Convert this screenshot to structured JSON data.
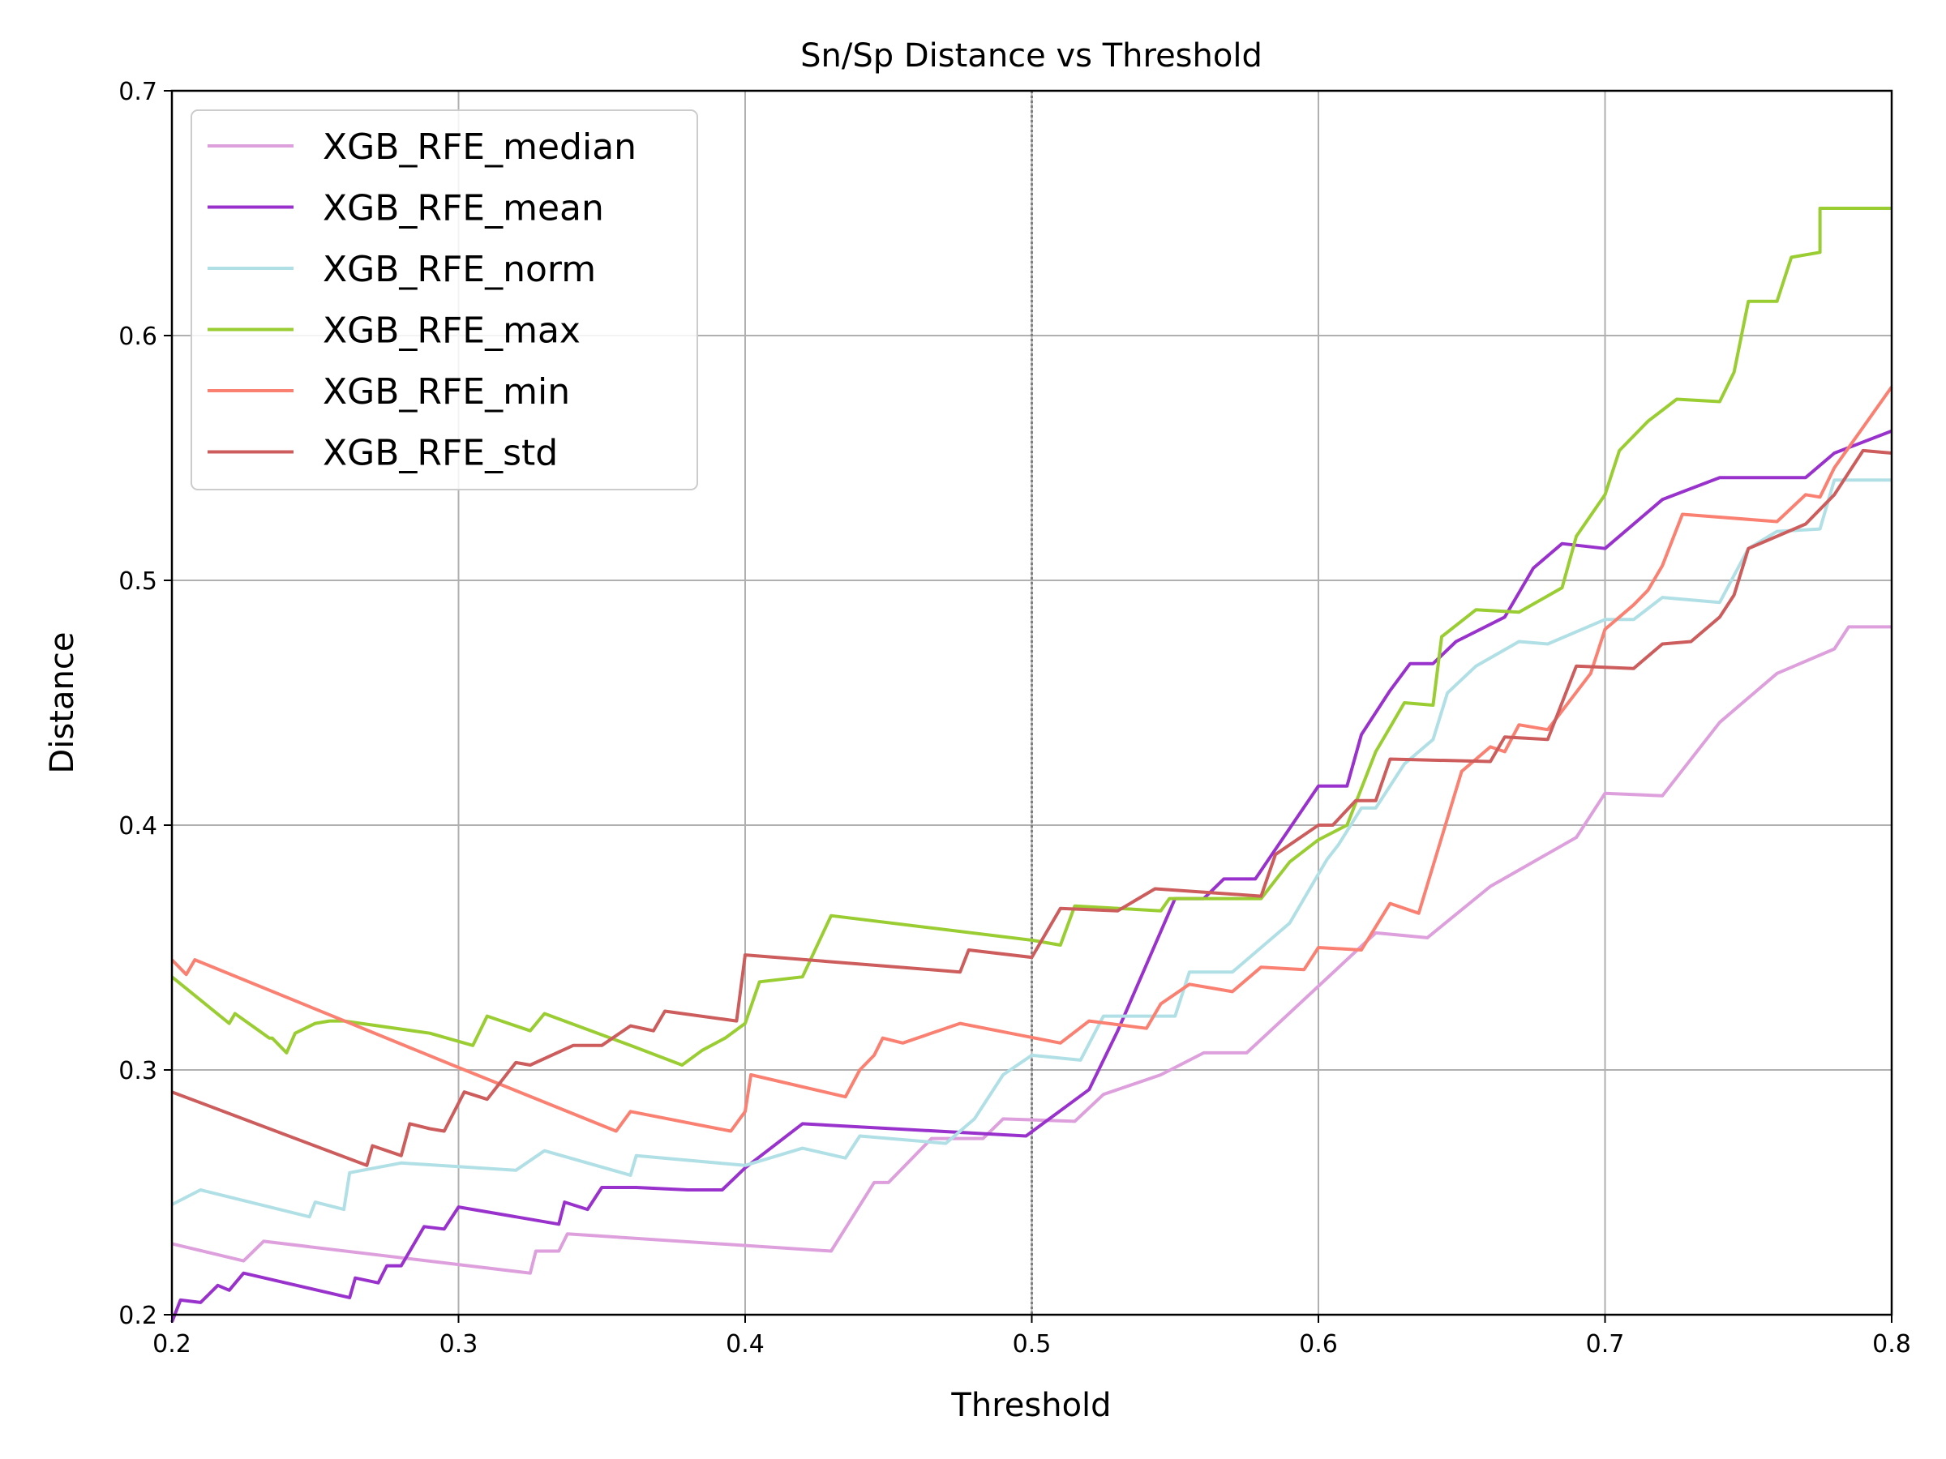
{
  "chart_data": {
    "type": "line",
    "title": "Sn/Sp Distance vs Threshold",
    "xlabel": "Threshold",
    "ylabel": "Distance",
    "xlim": [
      0.2,
      0.8
    ],
    "ylim": [
      0.2,
      0.7
    ],
    "xticks": [
      0.2,
      0.3,
      0.4,
      0.5,
      0.6,
      0.7,
      0.8
    ],
    "yticks": [
      0.2,
      0.3,
      0.4,
      0.5,
      0.6,
      0.7
    ],
    "xtick_labels": [
      "0.2",
      "0.3",
      "0.4",
      "0.5",
      "0.6",
      "0.7",
      "0.8"
    ],
    "ytick_labels": [
      "0.2",
      "0.3",
      "0.4",
      "0.5",
      "0.6",
      "0.7"
    ],
    "grid": true,
    "legend_position": "top-left",
    "vline": {
      "x": 0.5,
      "color": "#808080",
      "style": "dotted"
    },
    "series": [
      {
        "name": "XGB_RFE_median",
        "color": "#dda0dd",
        "points": [
          [
            0.2,
            0.229
          ],
          [
            0.225,
            0.222
          ],
          [
            0.232,
            0.23
          ],
          [
            0.325,
            0.217
          ],
          [
            0.327,
            0.226
          ],
          [
            0.335,
            0.226
          ],
          [
            0.338,
            0.233
          ],
          [
            0.43,
            0.226
          ],
          [
            0.445,
            0.254
          ],
          [
            0.45,
            0.254
          ],
          [
            0.465,
            0.272
          ],
          [
            0.483,
            0.272
          ],
          [
            0.49,
            0.28
          ],
          [
            0.515,
            0.279
          ],
          [
            0.525,
            0.29
          ],
          [
            0.545,
            0.298
          ],
          [
            0.56,
            0.307
          ],
          [
            0.575,
            0.307
          ],
          [
            0.62,
            0.356
          ],
          [
            0.638,
            0.354
          ],
          [
            0.66,
            0.375
          ],
          [
            0.69,
            0.395
          ],
          [
            0.7,
            0.413
          ],
          [
            0.72,
            0.412
          ],
          [
            0.74,
            0.442
          ],
          [
            0.76,
            0.462
          ],
          [
            0.78,
            0.472
          ],
          [
            0.785,
            0.481
          ],
          [
            0.8,
            0.481
          ]
        ]
      },
      {
        "name": "XGB_RFE_mean",
        "color": "#9932cc",
        "points": [
          [
            0.2,
            0.197
          ],
          [
            0.203,
            0.206
          ],
          [
            0.21,
            0.205
          ],
          [
            0.216,
            0.212
          ],
          [
            0.22,
            0.21
          ],
          [
            0.225,
            0.217
          ],
          [
            0.262,
            0.207
          ],
          [
            0.264,
            0.215
          ],
          [
            0.272,
            0.213
          ],
          [
            0.275,
            0.22
          ],
          [
            0.28,
            0.22
          ],
          [
            0.288,
            0.236
          ],
          [
            0.295,
            0.235
          ],
          [
            0.3,
            0.244
          ],
          [
            0.335,
            0.237
          ],
          [
            0.337,
            0.246
          ],
          [
            0.345,
            0.243
          ],
          [
            0.35,
            0.252
          ],
          [
            0.362,
            0.252
          ],
          [
            0.38,
            0.251
          ],
          [
            0.392,
            0.251
          ],
          [
            0.4,
            0.26
          ],
          [
            0.42,
            0.278
          ],
          [
            0.498,
            0.273
          ],
          [
            0.52,
            0.292
          ],
          [
            0.53,
            0.316
          ],
          [
            0.55,
            0.37
          ],
          [
            0.56,
            0.37
          ],
          [
            0.567,
            0.378
          ],
          [
            0.578,
            0.378
          ],
          [
            0.6,
            0.416
          ],
          [
            0.61,
            0.416
          ],
          [
            0.615,
            0.437
          ],
          [
            0.625,
            0.455
          ],
          [
            0.632,
            0.466
          ],
          [
            0.64,
            0.466
          ],
          [
            0.648,
            0.475
          ],
          [
            0.665,
            0.485
          ],
          [
            0.675,
            0.505
          ],
          [
            0.685,
            0.515
          ],
          [
            0.7,
            0.513
          ],
          [
            0.72,
            0.533
          ],
          [
            0.74,
            0.542
          ],
          [
            0.77,
            0.542
          ],
          [
            0.78,
            0.552
          ],
          [
            0.8,
            0.561
          ]
        ]
      },
      {
        "name": "XGB_RFE_norm",
        "color": "#b0e0e6",
        "points": [
          [
            0.2,
            0.245
          ],
          [
            0.21,
            0.251
          ],
          [
            0.248,
            0.24
          ],
          [
            0.25,
            0.246
          ],
          [
            0.26,
            0.243
          ],
          [
            0.262,
            0.258
          ],
          [
            0.28,
            0.262
          ],
          [
            0.32,
            0.259
          ],
          [
            0.33,
            0.267
          ],
          [
            0.36,
            0.257
          ],
          [
            0.362,
            0.265
          ],
          [
            0.4,
            0.261
          ],
          [
            0.42,
            0.268
          ],
          [
            0.435,
            0.264
          ],
          [
            0.44,
            0.273
          ],
          [
            0.47,
            0.27
          ],
          [
            0.48,
            0.28
          ],
          [
            0.49,
            0.298
          ],
          [
            0.5,
            0.306
          ],
          [
            0.517,
            0.304
          ],
          [
            0.525,
            0.322
          ],
          [
            0.55,
            0.322
          ],
          [
            0.555,
            0.34
          ],
          [
            0.57,
            0.34
          ],
          [
            0.59,
            0.36
          ],
          [
            0.603,
            0.386
          ],
          [
            0.607,
            0.392
          ],
          [
            0.615,
            0.407
          ],
          [
            0.62,
            0.407
          ],
          [
            0.63,
            0.425
          ],
          [
            0.64,
            0.435
          ],
          [
            0.645,
            0.454
          ],
          [
            0.655,
            0.465
          ],
          [
            0.67,
            0.475
          ],
          [
            0.68,
            0.474
          ],
          [
            0.7,
            0.484
          ],
          [
            0.71,
            0.484
          ],
          [
            0.72,
            0.493
          ],
          [
            0.74,
            0.491
          ],
          [
            0.75,
            0.513
          ],
          [
            0.76,
            0.52
          ],
          [
            0.775,
            0.521
          ],
          [
            0.78,
            0.541
          ],
          [
            0.8,
            0.541
          ]
        ]
      },
      {
        "name": "XGB_RFE_max",
        "color": "#9acd32",
        "points": [
          [
            0.2,
            0.338
          ],
          [
            0.22,
            0.319
          ],
          [
            0.222,
            0.323
          ],
          [
            0.234,
            0.313
          ],
          [
            0.235,
            0.313
          ],
          [
            0.24,
            0.307
          ],
          [
            0.243,
            0.315
          ],
          [
            0.25,
            0.319
          ],
          [
            0.255,
            0.32
          ],
          [
            0.26,
            0.32
          ],
          [
            0.29,
            0.315
          ],
          [
            0.305,
            0.31
          ],
          [
            0.31,
            0.322
          ],
          [
            0.325,
            0.316
          ],
          [
            0.33,
            0.323
          ],
          [
            0.36,
            0.31
          ],
          [
            0.378,
            0.302
          ],
          [
            0.385,
            0.308
          ],
          [
            0.393,
            0.313
          ],
          [
            0.4,
            0.319
          ],
          [
            0.405,
            0.336
          ],
          [
            0.42,
            0.338
          ],
          [
            0.43,
            0.363
          ],
          [
            0.5,
            0.353
          ],
          [
            0.51,
            0.351
          ],
          [
            0.515,
            0.367
          ],
          [
            0.545,
            0.365
          ],
          [
            0.548,
            0.37
          ],
          [
            0.58,
            0.37
          ],
          [
            0.59,
            0.385
          ],
          [
            0.6,
            0.394
          ],
          [
            0.61,
            0.4
          ],
          [
            0.62,
            0.43
          ],
          [
            0.625,
            0.44
          ],
          [
            0.63,
            0.45
          ],
          [
            0.64,
            0.449
          ],
          [
            0.643,
            0.477
          ],
          [
            0.655,
            0.488
          ],
          [
            0.67,
            0.487
          ],
          [
            0.685,
            0.497
          ],
          [
            0.69,
            0.518
          ],
          [
            0.7,
            0.535
          ],
          [
            0.705,
            0.553
          ],
          [
            0.715,
            0.565
          ],
          [
            0.725,
            0.574
          ],
          [
            0.74,
            0.573
          ],
          [
            0.745,
            0.585
          ],
          [
            0.75,
            0.614
          ],
          [
            0.76,
            0.614
          ],
          [
            0.765,
            0.632
          ],
          [
            0.775,
            0.634
          ],
          [
            0.775,
            0.652
          ],
          [
            0.8,
            0.652
          ]
        ]
      },
      {
        "name": "XGB_RFE_min",
        "color": "#fa8072",
        "points": [
          [
            0.2,
            0.345
          ],
          [
            0.205,
            0.339
          ],
          [
            0.208,
            0.345
          ],
          [
            0.3,
            0.301
          ],
          [
            0.355,
            0.275
          ],
          [
            0.36,
            0.283
          ],
          [
            0.395,
            0.275
          ],
          [
            0.4,
            0.283
          ],
          [
            0.402,
            0.298
          ],
          [
            0.435,
            0.289
          ],
          [
            0.44,
            0.3
          ],
          [
            0.445,
            0.306
          ],
          [
            0.448,
            0.313
          ],
          [
            0.455,
            0.311
          ],
          [
            0.475,
            0.319
          ],
          [
            0.51,
            0.311
          ],
          [
            0.52,
            0.32
          ],
          [
            0.54,
            0.317
          ],
          [
            0.545,
            0.327
          ],
          [
            0.555,
            0.335
          ],
          [
            0.57,
            0.332
          ],
          [
            0.58,
            0.342
          ],
          [
            0.595,
            0.341
          ],
          [
            0.6,
            0.35
          ],
          [
            0.615,
            0.349
          ],
          [
            0.625,
            0.368
          ],
          [
            0.635,
            0.364
          ],
          [
            0.65,
            0.422
          ],
          [
            0.66,
            0.432
          ],
          [
            0.665,
            0.43
          ],
          [
            0.67,
            0.441
          ],
          [
            0.68,
            0.439
          ],
          [
            0.695,
            0.462
          ],
          [
            0.7,
            0.48
          ],
          [
            0.71,
            0.49
          ],
          [
            0.715,
            0.496
          ],
          [
            0.72,
            0.506
          ],
          [
            0.727,
            0.527
          ],
          [
            0.76,
            0.524
          ],
          [
            0.77,
            0.535
          ],
          [
            0.775,
            0.534
          ],
          [
            0.78,
            0.546
          ],
          [
            0.8,
            0.579
          ]
        ]
      },
      {
        "name": "XGB_RFE_std",
        "color": "#cd5c5c",
        "points": [
          [
            0.2,
            0.291
          ],
          [
            0.268,
            0.261
          ],
          [
            0.27,
            0.269
          ],
          [
            0.28,
            0.265
          ],
          [
            0.283,
            0.278
          ],
          [
            0.29,
            0.276
          ],
          [
            0.295,
            0.275
          ],
          [
            0.302,
            0.291
          ],
          [
            0.31,
            0.288
          ],
          [
            0.32,
            0.303
          ],
          [
            0.325,
            0.302
          ],
          [
            0.34,
            0.31
          ],
          [
            0.35,
            0.31
          ],
          [
            0.36,
            0.318
          ],
          [
            0.368,
            0.316
          ],
          [
            0.372,
            0.324
          ],
          [
            0.397,
            0.32
          ],
          [
            0.4,
            0.347
          ],
          [
            0.475,
            0.34
          ],
          [
            0.478,
            0.349
          ],
          [
            0.5,
            0.346
          ],
          [
            0.51,
            0.366
          ],
          [
            0.53,
            0.365
          ],
          [
            0.543,
            0.374
          ],
          [
            0.58,
            0.371
          ],
          [
            0.585,
            0.388
          ],
          [
            0.6,
            0.4
          ],
          [
            0.605,
            0.4
          ],
          [
            0.613,
            0.41
          ],
          [
            0.62,
            0.41
          ],
          [
            0.625,
            0.427
          ],
          [
            0.66,
            0.426
          ],
          [
            0.665,
            0.436
          ],
          [
            0.68,
            0.435
          ],
          [
            0.69,
            0.465
          ],
          [
            0.71,
            0.464
          ],
          [
            0.72,
            0.474
          ],
          [
            0.73,
            0.475
          ],
          [
            0.74,
            0.485
          ],
          [
            0.745,
            0.494
          ],
          [
            0.75,
            0.513
          ],
          [
            0.77,
            0.523
          ],
          [
            0.78,
            0.535
          ],
          [
            0.79,
            0.553
          ],
          [
            0.8,
            0.552
          ]
        ]
      }
    ]
  }
}
